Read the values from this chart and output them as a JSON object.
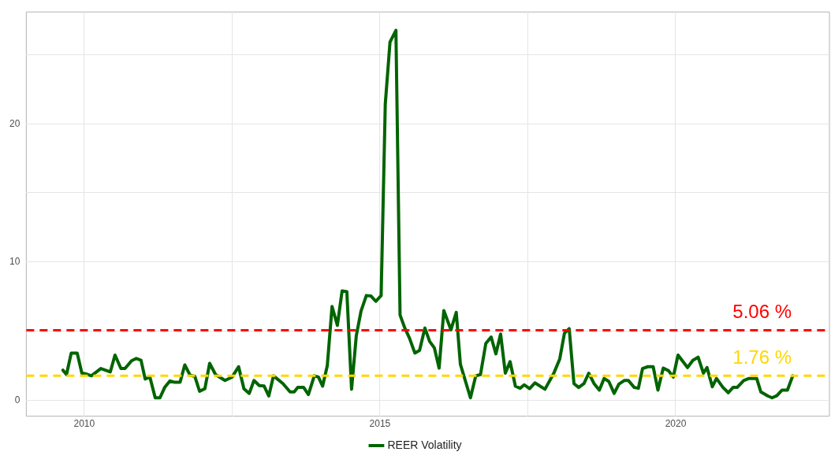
{
  "chart_data": {
    "type": "line",
    "legend": "bottom",
    "grid": true,
    "marker": "none",
    "line_style": "solid",
    "xlim": [
      2009.02,
      2022.6
    ],
    "xticks": [
      2010,
      {
        "value": 2012.5,
        "label": null
      },
      2015,
      {
        "value": 2017.5,
        "label": null
      },
      2020
    ],
    "ylim": [
      -1.16,
      28.09
    ],
    "yticks": [
      0,
      {
        "value": 5,
        "label": null
      },
      10,
      {
        "value": 15,
        "label": null
      },
      20,
      {
        "value": 25,
        "label": null
      }
    ],
    "series": [
      {
        "name": "REER Volatility",
        "color": "#006400",
        "x": [
          2009.64,
          2009.7,
          2009.78,
          2009.88,
          2009.96,
          2010.02,
          2010.12,
          2010.28,
          2010.44,
          2010.52,
          2010.62,
          2010.69,
          2010.8,
          2010.88,
          2010.96,
          2011.03,
          2011.11,
          2011.2,
          2011.28,
          2011.36,
          2011.45,
          2011.53,
          2011.62,
          2011.7,
          2011.79,
          2011.87,
          2011.95,
          2012.04,
          2012.12,
          2012.22,
          2012.38,
          2012.5,
          2012.61,
          2012.7,
          2012.79,
          2012.87,
          2012.96,
          2013.04,
          2013.12,
          2013.2,
          2013.36,
          2013.48,
          2013.55,
          2013.61,
          2013.71,
          2013.79,
          2013.89,
          2013.96,
          2014.03,
          2014.11,
          2014.19,
          2014.28,
          2014.36,
          2014.44,
          2014.52,
          2014.6,
          2014.68,
          2014.77,
          2014.85,
          2014.93,
          2015.02,
          2015.09,
          2015.17,
          2015.27,
          2015.34,
          2015.42,
          2015.5,
          2015.59,
          2015.67,
          2015.76,
          2015.84,
          2015.92,
          2016.0,
          2016.08,
          2016.2,
          2016.29,
          2016.36,
          2016.53,
          2016.62,
          2016.7,
          2016.79,
          2016.88,
          2016.96,
          2017.04,
          2017.12,
          2017.2,
          2017.29,
          2017.37,
          2017.44,
          2017.53,
          2017.62,
          2017.79,
          2017.94,
          2018.04,
          2018.12,
          2018.2,
          2018.28,
          2018.36,
          2018.45,
          2018.53,
          2018.62,
          2018.71,
          2018.79,
          2018.87,
          2018.96,
          2019.04,
          2019.13,
          2019.2,
          2019.3,
          2019.37,
          2019.44,
          2019.53,
          2019.62,
          2019.7,
          2019.79,
          2019.88,
          2019.96,
          2020.04,
          2020.2,
          2020.29,
          2020.38,
          2020.47,
          2020.53,
          2020.62,
          2020.69,
          2020.8,
          2020.89,
          2020.97,
          2021.04,
          2021.15,
          2021.24,
          2021.37,
          2021.44,
          2021.56,
          2021.63,
          2021.71,
          2021.8,
          2021.89,
          2021.98
        ],
        "values": [
          2.17,
          1.85,
          3.41,
          3.41,
          1.95,
          1.91,
          1.76,
          2.29,
          2.04,
          3.26,
          2.29,
          2.29,
          2.85,
          3.02,
          2.88,
          1.53,
          1.67,
          0.17,
          0.17,
          0.92,
          1.39,
          1.29,
          1.29,
          2.55,
          1.8,
          1.72,
          0.64,
          0.83,
          2.66,
          1.85,
          1.42,
          1.67,
          2.42,
          0.83,
          0.49,
          1.42,
          1.05,
          1.03,
          0.3,
          1.76,
          1.2,
          0.6,
          0.6,
          0.92,
          0.92,
          0.41,
          1.76,
          1.67,
          1.01,
          2.51,
          6.78,
          5.41,
          7.9,
          7.85,
          0.79,
          4.66,
          6.44,
          7.57,
          7.53,
          7.15,
          7.57,
          21.42,
          25.92,
          26.76,
          6.16,
          5.22,
          4.48,
          3.41,
          3.6,
          5.22,
          4.25,
          3.78,
          2.32,
          6.48,
          5.09,
          6.35,
          2.6,
          0.17,
          1.76,
          1.85,
          4.1,
          4.57,
          3.35,
          4.79,
          1.95,
          2.79,
          1.01,
          0.86,
          1.11,
          0.83,
          1.25,
          0.79,
          1.95,
          2.98,
          4.85,
          5.17,
          1.2,
          0.92,
          1.2,
          1.95,
          1.2,
          0.73,
          1.57,
          1.35,
          0.49,
          1.16,
          1.42,
          1.42,
          0.92,
          0.86,
          2.29,
          2.42,
          2.42,
          0.73,
          2.32,
          2.13,
          1.67,
          3.26,
          2.36,
          2.88,
          3.11,
          1.95,
          2.36,
          0.97,
          1.57,
          0.92,
          0.54,
          0.92,
          0.92,
          1.42,
          1.57,
          1.57,
          0.6,
          0.3,
          0.17,
          0.32,
          0.73,
          0.73,
          1.76
        ]
      }
    ],
    "ref_lines": [
      {
        "axis": "y",
        "value": 5.06,
        "label": "5.06 %",
        "color": "#ff0000",
        "line_style": "dashed"
      },
      {
        "axis": "y",
        "value": 1.76,
        "label": "1.76 %",
        "color": "#ffd700",
        "line_style": "dashed"
      }
    ]
  }
}
